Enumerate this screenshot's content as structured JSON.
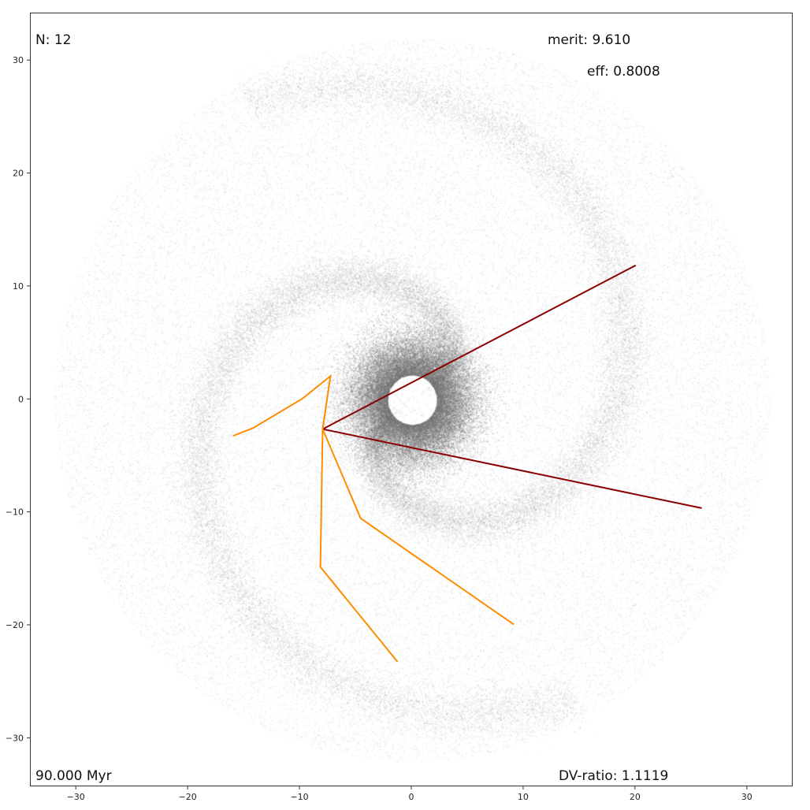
{
  "annotations": {
    "n": "N: 12",
    "merit": "merit: 9.610",
    "eff": "eff: 0.8008",
    "time": "90.000 Myr",
    "dv_ratio": "DV-ratio: 1.1119"
  },
  "chart_data": {
    "type": "scatter",
    "title": "",
    "xlabel": "",
    "ylabel": "",
    "xlim": [
      -34.1,
      34.1
    ],
    "ylim": [
      -34.3,
      34.2
    ],
    "grid": false,
    "xticks": [
      -30,
      -20,
      -10,
      0,
      10,
      20,
      30
    ],
    "yticks": [
      -30,
      -20,
      -10,
      0,
      10,
      20,
      30
    ],
    "background": "particle disk (gray points) with central ring around a hole at the origin and spiral arms",
    "colors": {
      "particles": "#808080",
      "orange": "#ff8c00",
      "darkred": "#8b0000"
    },
    "lines": [
      {
        "color": "darkred",
        "points": [
          [
            -8.0,
            -2.6
          ],
          [
            20.0,
            11.9
          ]
        ]
      },
      {
        "color": "darkred",
        "points": [
          [
            -8.0,
            -2.6
          ],
          [
            25.9,
            -9.6
          ]
        ]
      },
      {
        "color": "orange",
        "points": [
          [
            -16.0,
            -3.2
          ],
          [
            -14.2,
            -2.5
          ],
          [
            -9.8,
            0.1
          ],
          [
            -7.3,
            2.1
          ],
          [
            -8.0,
            -2.6
          ]
        ]
      },
      {
        "color": "orange",
        "points": [
          [
            -8.0,
            -2.6
          ],
          [
            -4.6,
            -10.5
          ],
          [
            9.1,
            -19.9
          ]
        ]
      },
      {
        "color": "orange",
        "points": [
          [
            -8.0,
            -2.6
          ],
          [
            -8.2,
            -14.8
          ],
          [
            -1.3,
            -23.2
          ]
        ]
      }
    ]
  }
}
